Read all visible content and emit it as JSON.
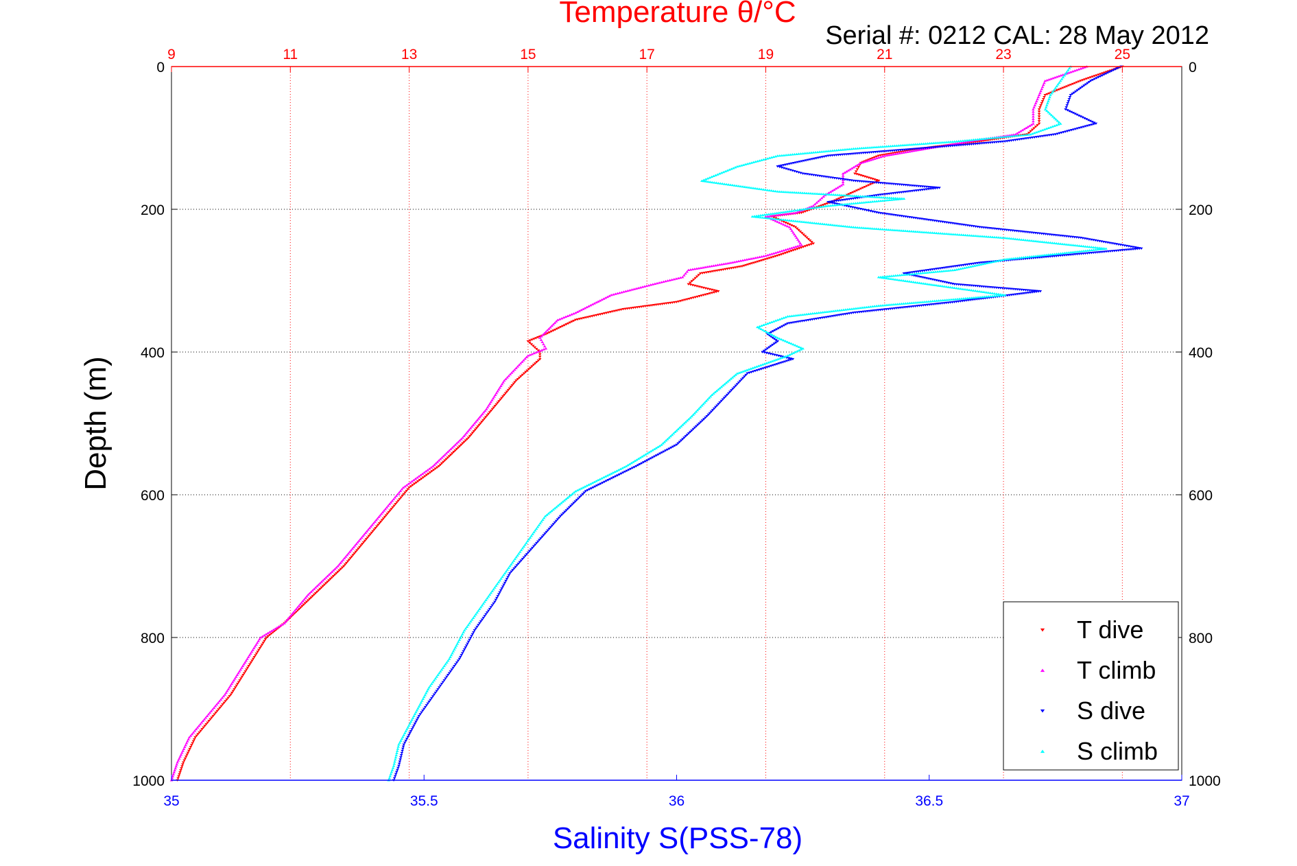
{
  "chart_data": {
    "type": "scatter",
    "top_title": "Temperature θ/°C",
    "serial_text": "Serial #: 0212  CAL: 28 May 2012",
    "xlabel": "Salinity S(PSS-78)",
    "ylabel": "Depth (m)",
    "y_axis": {
      "range": [
        0,
        1000
      ],
      "reversed": true,
      "ticks": [
        0,
        200,
        400,
        600,
        800,
        1000
      ]
    },
    "temp_axis": {
      "range": [
        9,
        26
      ],
      "ticks": [
        9,
        11,
        13,
        15,
        17,
        19,
        21,
        23,
        25
      ],
      "color": "#ff0000",
      "grid": true
    },
    "sal_axis": {
      "range": [
        35,
        37
      ],
      "ticks": [
        35,
        35.5,
        36,
        36.5,
        37
      ],
      "tick_labels": [
        "35",
        "35.5",
        "36",
        "36.5",
        "37"
      ],
      "color": "#0000ff"
    },
    "legend": {
      "position": "bottom-right",
      "entries": [
        "T dive",
        "T climb",
        "S dive",
        "S climb"
      ]
    },
    "series": [
      {
        "name": "T dive",
        "axis": "temperature",
        "color": "#ff0000",
        "marker": "triangle-down",
        "points": [
          [
            25.0,
            0
          ],
          [
            24.3,
            20
          ],
          [
            23.7,
            40
          ],
          [
            23.6,
            60
          ],
          [
            23.6,
            80
          ],
          [
            23.4,
            95
          ],
          [
            22.6,
            105
          ],
          [
            21.6,
            115
          ],
          [
            20.9,
            125
          ],
          [
            20.6,
            135
          ],
          [
            20.5,
            150
          ],
          [
            20.9,
            160
          ],
          [
            20.5,
            175
          ],
          [
            20.1,
            190
          ],
          [
            19.6,
            205
          ],
          [
            19.1,
            210
          ],
          [
            19.5,
            225
          ],
          [
            19.8,
            248
          ],
          [
            19.2,
            265
          ],
          [
            18.6,
            280
          ],
          [
            17.9,
            290
          ],
          [
            17.7,
            305
          ],
          [
            18.2,
            315
          ],
          [
            17.5,
            330
          ],
          [
            16.6,
            340
          ],
          [
            15.8,
            355
          ],
          [
            15.3,
            375
          ],
          [
            15.0,
            385
          ],
          [
            15.2,
            400
          ],
          [
            15.2,
            410
          ],
          [
            14.8,
            440
          ],
          [
            14.4,
            480
          ],
          [
            14.0,
            520
          ],
          [
            13.5,
            560
          ],
          [
            13.0,
            590
          ],
          [
            12.7,
            620
          ],
          [
            12.3,
            660
          ],
          [
            11.9,
            700
          ],
          [
            11.4,
            740
          ],
          [
            10.9,
            780
          ],
          [
            10.6,
            800
          ],
          [
            10.3,
            840
          ],
          [
            10.0,
            880
          ],
          [
            9.7,
            910
          ],
          [
            9.4,
            940
          ],
          [
            9.2,
            975
          ],
          [
            9.1,
            1000
          ]
        ]
      },
      {
        "name": "T climb",
        "axis": "temperature",
        "color": "#ff00ff",
        "marker": "triangle-up",
        "points": [
          [
            24.4,
            0
          ],
          [
            23.7,
            20
          ],
          [
            23.6,
            40
          ],
          [
            23.5,
            60
          ],
          [
            23.5,
            80
          ],
          [
            23.2,
            95
          ],
          [
            22.4,
            105
          ],
          [
            21.7,
            115
          ],
          [
            21.0,
            125
          ],
          [
            20.6,
            135
          ],
          [
            20.3,
            150
          ],
          [
            20.3,
            165
          ],
          [
            20.0,
            180
          ],
          [
            19.8,
            195
          ],
          [
            19.5,
            205
          ],
          [
            19.0,
            210
          ],
          [
            19.4,
            225
          ],
          [
            19.6,
            250
          ],
          [
            19.0,
            265
          ],
          [
            18.4,
            275
          ],
          [
            17.7,
            285
          ],
          [
            17.6,
            295
          ],
          [
            17.1,
            305
          ],
          [
            16.4,
            320
          ],
          [
            15.8,
            345
          ],
          [
            15.5,
            355
          ],
          [
            15.2,
            380
          ],
          [
            15.3,
            395
          ],
          [
            15.0,
            405
          ],
          [
            14.6,
            440
          ],
          [
            14.3,
            480
          ],
          [
            13.9,
            520
          ],
          [
            13.4,
            560
          ],
          [
            12.9,
            590
          ],
          [
            12.6,
            620
          ],
          [
            12.2,
            660
          ],
          [
            11.8,
            700
          ],
          [
            11.3,
            740
          ],
          [
            10.9,
            780
          ],
          [
            10.5,
            800
          ],
          [
            10.2,
            840
          ],
          [
            9.9,
            880
          ],
          [
            9.6,
            910
          ],
          [
            9.3,
            940
          ],
          [
            9.1,
            975
          ],
          [
            9.0,
            1000
          ]
        ]
      },
      {
        "name": "S dive",
        "axis": "salinity",
        "color": "#0000ff",
        "marker": "triangle-down",
        "points": [
          [
            36.88,
            0
          ],
          [
            36.82,
            20
          ],
          [
            36.78,
            40
          ],
          [
            36.77,
            60
          ],
          [
            36.83,
            80
          ],
          [
            36.75,
            95
          ],
          [
            36.65,
            105
          ],
          [
            36.48,
            115
          ],
          [
            36.3,
            125
          ],
          [
            36.2,
            140
          ],
          [
            36.25,
            150
          ],
          [
            36.35,
            160
          ],
          [
            36.52,
            170
          ],
          [
            36.4,
            180
          ],
          [
            36.3,
            190
          ],
          [
            36.4,
            205
          ],
          [
            36.6,
            225
          ],
          [
            36.8,
            240
          ],
          [
            36.92,
            255
          ],
          [
            36.6,
            275
          ],
          [
            36.45,
            290
          ],
          [
            36.55,
            305
          ],
          [
            36.72,
            315
          ],
          [
            36.55,
            330
          ],
          [
            36.35,
            345
          ],
          [
            36.22,
            360
          ],
          [
            36.18,
            375
          ],
          [
            36.2,
            385
          ],
          [
            36.17,
            400
          ],
          [
            36.23,
            410
          ],
          [
            36.14,
            430
          ],
          [
            36.1,
            460
          ],
          [
            36.06,
            490
          ],
          [
            36.0,
            530
          ],
          [
            35.92,
            560
          ],
          [
            35.82,
            595
          ],
          [
            35.77,
            630
          ],
          [
            35.72,
            670
          ],
          [
            35.67,
            710
          ],
          [
            35.64,
            750
          ],
          [
            35.6,
            790
          ],
          [
            35.57,
            830
          ],
          [
            35.53,
            870
          ],
          [
            35.49,
            910
          ],
          [
            35.46,
            950
          ],
          [
            35.45,
            980
          ],
          [
            35.44,
            1000
          ]
        ]
      },
      {
        "name": "S climb",
        "axis": "salinity",
        "color": "#00ffff",
        "marker": "triangle-up",
        "points": [
          [
            36.78,
            0
          ],
          [
            36.76,
            20
          ],
          [
            36.74,
            40
          ],
          [
            36.73,
            60
          ],
          [
            36.76,
            80
          ],
          [
            36.7,
            95
          ],
          [
            36.55,
            105
          ],
          [
            36.35,
            115
          ],
          [
            36.2,
            125
          ],
          [
            36.12,
            140
          ],
          [
            36.05,
            160
          ],
          [
            36.2,
            175
          ],
          [
            36.45,
            185
          ],
          [
            36.3,
            195
          ],
          [
            36.15,
            210
          ],
          [
            36.35,
            225
          ],
          [
            36.65,
            240
          ],
          [
            36.85,
            255
          ],
          [
            36.65,
            270
          ],
          [
            36.55,
            285
          ],
          [
            36.4,
            295
          ],
          [
            36.55,
            310
          ],
          [
            36.65,
            320
          ],
          [
            36.4,
            335
          ],
          [
            36.22,
            350
          ],
          [
            36.16,
            365
          ],
          [
            36.2,
            380
          ],
          [
            36.25,
            395
          ],
          [
            36.22,
            405
          ],
          [
            36.12,
            430
          ],
          [
            36.07,
            460
          ],
          [
            36.03,
            490
          ],
          [
            35.97,
            530
          ],
          [
            35.9,
            560
          ],
          [
            35.8,
            595
          ],
          [
            35.74,
            630
          ],
          [
            35.7,
            670
          ],
          [
            35.66,
            710
          ],
          [
            35.62,
            750
          ],
          [
            35.58,
            790
          ],
          [
            35.55,
            830
          ],
          [
            35.51,
            870
          ],
          [
            35.48,
            910
          ],
          [
            35.45,
            950
          ],
          [
            35.44,
            980
          ],
          [
            35.43,
            1000
          ]
        ]
      }
    ]
  }
}
